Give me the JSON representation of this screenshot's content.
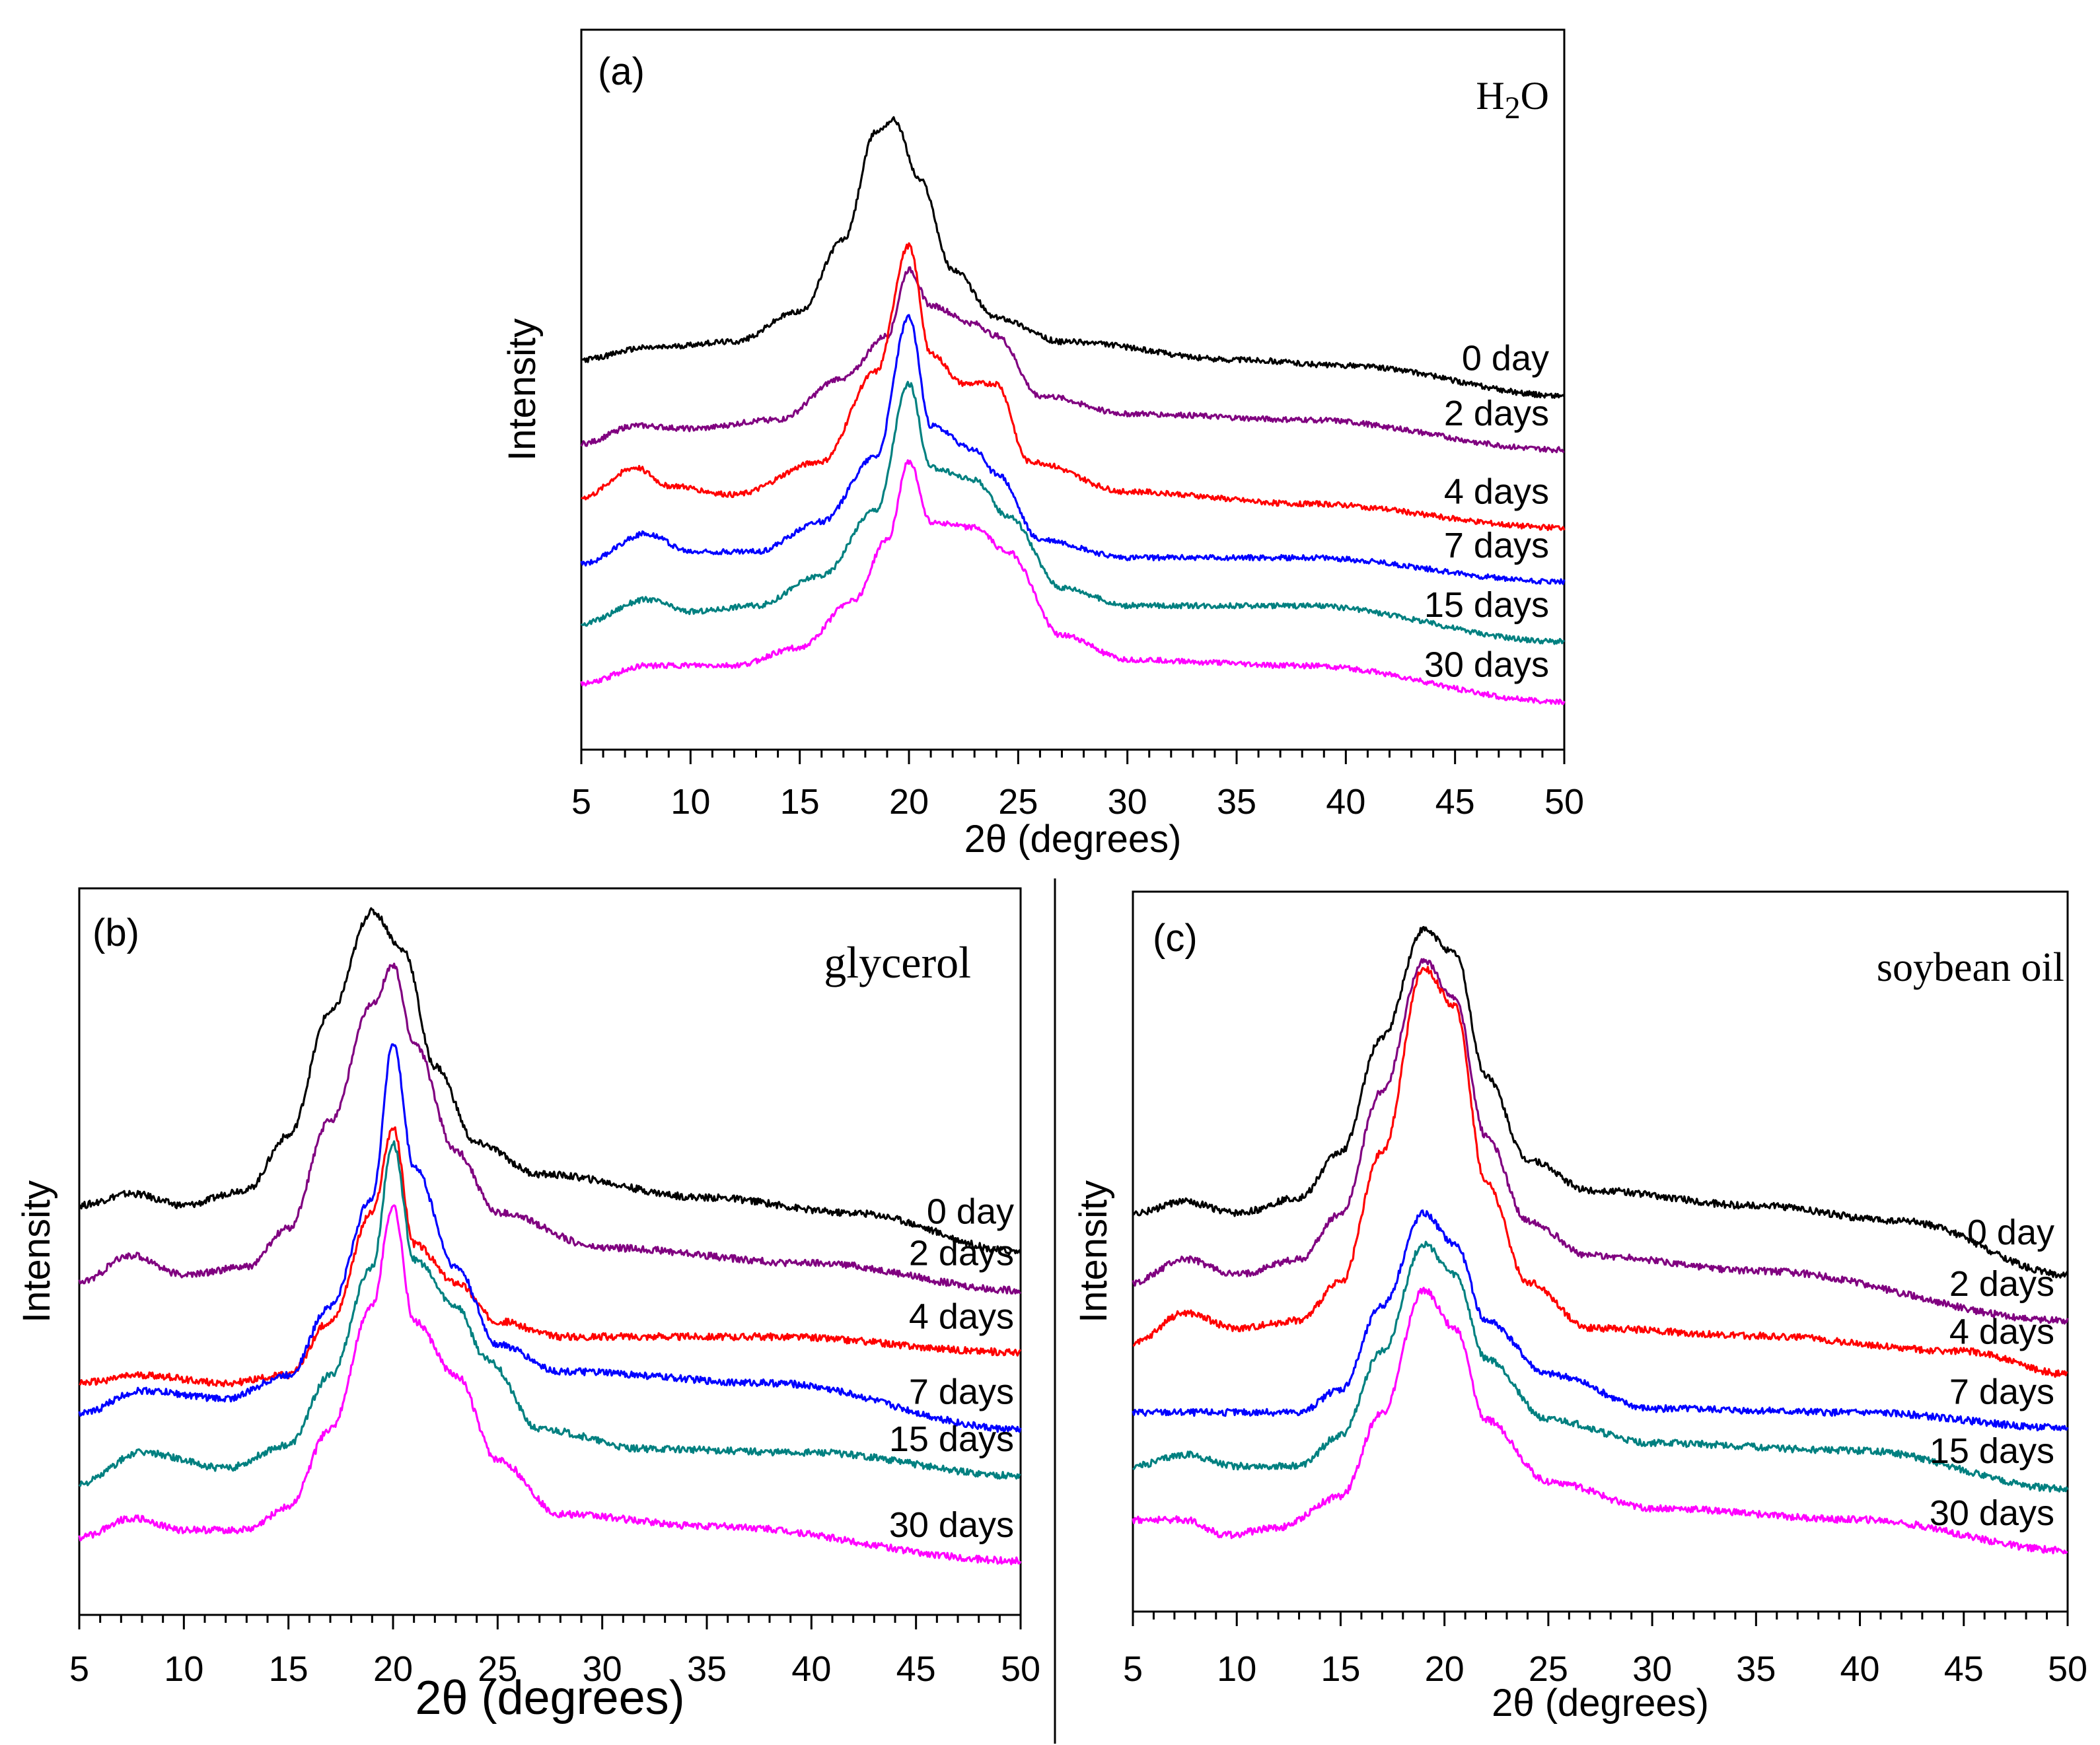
{
  "chart_data": [
    {
      "type": "line",
      "panel_label": "(a)",
      "title": "H2O",
      "title_main": "H",
      "title_sub": "2",
      "title_end": "O",
      "xlabel": "2θ (degrees)",
      "ylabel": "Intensity",
      "xlim": [
        5,
        50
      ],
      "x_ticks": [
        "5",
        "10",
        "15",
        "20",
        "25",
        "30",
        "35",
        "40",
        "45",
        "50"
      ],
      "y_units": "arbitrary (offset traces)",
      "series": [
        {
          "name": "0 day",
          "color": "#000000",
          "baseline": 8.0,
          "points": [
            [
              5,
              8.0
            ],
            [
              8,
              8.2
            ],
            [
              12,
              8.3
            ],
            [
              15,
              8.8
            ],
            [
              17,
              10.0
            ],
            [
              18.5,
              11.8
            ],
            [
              19.3,
              12.0
            ],
            [
              20.5,
              11.0
            ],
            [
              22,
              9.5
            ],
            [
              24,
              8.7
            ],
            [
              27,
              8.3
            ],
            [
              35,
              8.0
            ],
            [
              40,
              7.9
            ],
            [
              50,
              7.4
            ]
          ]
        },
        {
          "name": "2 days",
          "color": "#800080",
          "baseline": 6.5,
          "points": [
            [
              5,
              6.6
            ],
            [
              7.5,
              6.9
            ],
            [
              10,
              6.85
            ],
            [
              14,
              7.0
            ],
            [
              17,
              7.7
            ],
            [
              19,
              8.4
            ],
            [
              20,
              9.5
            ],
            [
              21,
              8.9
            ],
            [
              23,
              8.6
            ],
            [
              24,
              8.4
            ],
            [
              26,
              7.4
            ],
            [
              30,
              7.1
            ],
            [
              38,
              7.0
            ],
            [
              50,
              6.5
            ]
          ]
        },
        {
          "name": "4 days",
          "color": "#ff0000",
          "baseline": 5.5,
          "points": [
            [
              5,
              5.7
            ],
            [
              7.5,
              6.2
            ],
            [
              9,
              5.9
            ],
            [
              12,
              5.75
            ],
            [
              16,
              6.3
            ],
            [
              18.5,
              7.8
            ],
            [
              20,
              9.9
            ],
            [
              21,
              8.1
            ],
            [
              22.5,
              7.6
            ],
            [
              24,
              7.6
            ],
            [
              25.5,
              6.3
            ],
            [
              30,
              5.8
            ],
            [
              38,
              5.6
            ],
            [
              50,
              5.2
            ]
          ]
        },
        {
          "name": "7 days",
          "color": "#0000ff",
          "baseline": 4.5,
          "points": [
            [
              5,
              4.6
            ],
            [
              8,
              5.1
            ],
            [
              10,
              4.8
            ],
            [
              13,
              4.8
            ],
            [
              16,
              5.3
            ],
            [
              18.5,
              6.4
            ],
            [
              20,
              8.7
            ],
            [
              21,
              6.9
            ],
            [
              23,
              6.5
            ],
            [
              24,
              6.1
            ],
            [
              26,
              5.0
            ],
            [
              30,
              4.7
            ],
            [
              38,
              4.7
            ],
            [
              50,
              4.3
            ]
          ]
        },
        {
          "name": "15 days",
          "color": "#008080",
          "baseline": 3.5,
          "points": [
            [
              5,
              3.6
            ],
            [
              8,
              4.0
            ],
            [
              10,
              3.8
            ],
            [
              13,
              3.9
            ],
            [
              16,
              4.4
            ],
            [
              18.5,
              5.5
            ],
            [
              20,
              7.6
            ],
            [
              21,
              6.2
            ],
            [
              23,
              6.0
            ],
            [
              24.5,
              5.4
            ],
            [
              27,
              4.2
            ],
            [
              30,
              3.9
            ],
            [
              38,
              3.9
            ],
            [
              50,
              3.3
            ]
          ]
        },
        {
          "name": "30 days",
          "color": "#ff00ff",
          "baseline": 2.5,
          "points": [
            [
              5,
              2.6
            ],
            [
              8,
              2.9
            ],
            [
              12,
              2.9
            ],
            [
              15,
              3.2
            ],
            [
              17.5,
              4.0
            ],
            [
              19,
              5.0
            ],
            [
              20,
              6.3
            ],
            [
              21,
              5.3
            ],
            [
              23,
              5.2
            ],
            [
              24.5,
              4.8
            ],
            [
              27,
              3.4
            ],
            [
              30,
              3.0
            ],
            [
              38,
              2.9
            ],
            [
              50,
              2.3
            ]
          ]
        }
      ]
    },
    {
      "type": "line",
      "panel_label": "(b)",
      "title": "glycerol",
      "xlabel": "2θ (degrees)",
      "ylabel": "Intensity",
      "xlim": [
        5,
        50
      ],
      "x_ticks": [
        "5",
        "10",
        "15",
        "20",
        "25",
        "30",
        "35",
        "40",
        "45",
        "50"
      ],
      "y_units": "arbitrary (offset traces)",
      "series": [
        {
          "name": "0 day",
          "color": "#000000",
          "baseline": 8.5,
          "points": [
            [
              5,
              8.5
            ],
            [
              7.5,
              8.65
            ],
            [
              10,
              8.5
            ],
            [
              13,
              8.7
            ],
            [
              15,
              9.4
            ],
            [
              17,
              11.0
            ],
            [
              19,
              12.3
            ],
            [
              20.5,
              11.8
            ],
            [
              22,
              10.3
            ],
            [
              24,
              9.3
            ],
            [
              27,
              8.9
            ],
            [
              35,
              8.6
            ],
            [
              42,
              8.4
            ],
            [
              50,
              7.9
            ]
          ]
        },
        {
          "name": "2 days",
          "color": "#800080",
          "baseline": 7.5,
          "points": [
            [
              5,
              7.5
            ],
            [
              7.5,
              7.85
            ],
            [
              10,
              7.6
            ],
            [
              13,
              7.7
            ],
            [
              15,
              8.2
            ],
            [
              17,
              9.6
            ],
            [
              19,
              11.1
            ],
            [
              20,
              11.6
            ],
            [
              21,
              10.6
            ],
            [
              23,
              9.2
            ],
            [
              25,
              8.4
            ],
            [
              30,
              7.95
            ],
            [
              40,
              7.75
            ],
            [
              50,
              7.4
            ]
          ]
        },
        {
          "name": "4 days",
          "color": "#ff0000",
          "baseline": 6.2,
          "points": [
            [
              5,
              6.2
            ],
            [
              8,
              6.3
            ],
            [
              12,
              6.2
            ],
            [
              15,
              6.3
            ],
            [
              17,
              7.0
            ],
            [
              19,
              8.4
            ],
            [
              20,
              9.5
            ],
            [
              21,
              8.0
            ],
            [
              23,
              7.5
            ],
            [
              25,
              7.0
            ],
            [
              28,
              6.8
            ],
            [
              38,
              6.8
            ],
            [
              50,
              6.6
            ]
          ]
        },
        {
          "name": "7 days",
          "color": "#0000ff",
          "baseline": 5.8,
          "points": [
            [
              5,
              5.8
            ],
            [
              8,
              6.1
            ],
            [
              12,
              6.0
            ],
            [
              15,
              6.3
            ],
            [
              17,
              7.2
            ],
            [
              19,
              8.6
            ],
            [
              20,
              10.6
            ],
            [
              21,
              9.0
            ],
            [
              23,
              7.7
            ],
            [
              25,
              6.7
            ],
            [
              28,
              6.35
            ],
            [
              38,
              6.2
            ],
            [
              50,
              5.6
            ]
          ]
        },
        {
          "name": "15 days",
          "color": "#008080",
          "baseline": 4.9,
          "points": [
            [
              5,
              4.9
            ],
            [
              8,
              5.3
            ],
            [
              12,
              5.1
            ],
            [
              15,
              5.4
            ],
            [
              17,
              6.3
            ],
            [
              19,
              7.7
            ],
            [
              20,
              9.3
            ],
            [
              21,
              7.8
            ],
            [
              23,
              7.2
            ],
            [
              24.5,
              6.5
            ],
            [
              27,
              5.6
            ],
            [
              32,
              5.35
            ],
            [
              40,
              5.3
            ],
            [
              50,
              5.0
            ]
          ]
        },
        {
          "name": "30 days",
          "color": "#ff00ff",
          "baseline": 4.2,
          "points": [
            [
              5,
              4.2
            ],
            [
              7.5,
              4.45
            ],
            [
              10,
              4.3
            ],
            [
              13,
              4.3
            ],
            [
              15,
              4.6
            ],
            [
              17,
              5.6
            ],
            [
              19,
              7.2
            ],
            [
              20,
              8.5
            ],
            [
              21,
              7.0
            ],
            [
              23,
              6.3
            ],
            [
              25,
              5.2
            ],
            [
              28,
              4.5
            ],
            [
              35,
              4.35
            ],
            [
              50,
              3.9
            ]
          ]
        }
      ]
    },
    {
      "type": "line",
      "panel_label": "(c)",
      "title": "soybean oil",
      "xlabel": "2θ (degrees)",
      "ylabel": "Intensity",
      "xlim": [
        5,
        50
      ],
      "x_ticks": [
        "5",
        "10",
        "15",
        "20",
        "25",
        "30",
        "35",
        "40",
        "45",
        "50"
      ],
      "y_units": "arbitrary (offset traces)",
      "series": [
        {
          "name": "0 day",
          "color": "#000000",
          "baseline": 8.6,
          "points": [
            [
              5,
              8.6
            ],
            [
              7.5,
              8.75
            ],
            [
              10,
              8.6
            ],
            [
              13,
              8.8
            ],
            [
              15,
              9.4
            ],
            [
              17,
              10.9
            ],
            [
              19,
              12.3
            ],
            [
              20.5,
              12.0
            ],
            [
              22,
              10.4
            ],
            [
              24,
              9.3
            ],
            [
              27,
              8.9
            ],
            [
              35,
              8.7
            ],
            [
              42,
              8.5
            ],
            [
              50,
              7.8
            ]
          ]
        },
        {
          "name": "2 days",
          "color": "#800080",
          "baseline": 7.7,
          "points": [
            [
              5,
              7.7
            ],
            [
              7.5,
              8.0
            ],
            [
              10,
              7.8
            ],
            [
              13,
              8.0
            ],
            [
              15,
              8.6
            ],
            [
              17,
              10.2
            ],
            [
              19,
              11.9
            ],
            [
              20.5,
              11.4
            ],
            [
              22,
              9.6
            ],
            [
              24,
              8.5
            ],
            [
              27,
              8.05
            ],
            [
              35,
              7.85
            ],
            [
              50,
              7.2
            ]
          ]
        },
        {
          "name": "4 days",
          "color": "#ff0000",
          "baseline": 6.9,
          "points": [
            [
              5,
              6.9
            ],
            [
              7.5,
              7.3
            ],
            [
              10,
              7.1
            ],
            [
              13,
              7.2
            ],
            [
              15,
              7.7
            ],
            [
              17,
              9.4
            ],
            [
              19,
              11.8
            ],
            [
              20.5,
              11.3
            ],
            [
              22,
              9.0
            ],
            [
              24,
              7.7
            ],
            [
              27,
              7.1
            ],
            [
              35,
              7.0
            ],
            [
              45,
              6.8
            ],
            [
              50,
              6.5
            ]
          ]
        },
        {
          "name": "7 days",
          "color": "#0000ff",
          "baseline": 6.0,
          "points": [
            [
              5,
              6.0
            ],
            [
              10,
              6.0
            ],
            [
              13,
              6.0
            ],
            [
              15,
              6.3
            ],
            [
              17,
              7.4
            ],
            [
              19,
              8.6
            ],
            [
              20.5,
              8.2
            ],
            [
              22,
              7.2
            ],
            [
              25,
              6.5
            ],
            [
              30,
              6.05
            ],
            [
              40,
              6.0
            ],
            [
              50,
              5.8
            ]
          ]
        },
        {
          "name": "15 days",
          "color": "#008080",
          "baseline": 5.3,
          "points": [
            [
              5,
              5.3
            ],
            [
              7.5,
              5.45
            ],
            [
              10,
              5.3
            ],
            [
              13,
              5.3
            ],
            [
              15,
              5.7
            ],
            [
              17,
              6.8
            ],
            [
              19,
              8.2
            ],
            [
              20.5,
              7.8
            ],
            [
              22,
              6.7
            ],
            [
              25,
              5.9
            ],
            [
              30,
              5.6
            ],
            [
              40,
              5.5
            ],
            [
              50,
              5.0
            ]
          ]
        },
        {
          "name": "30 days",
          "color": "#ff00ff",
          "baseline": 4.6,
          "points": [
            [
              5,
              4.6
            ],
            [
              7.5,
              4.6
            ],
            [
              9.5,
              4.4
            ],
            [
              12,
              4.5
            ],
            [
              15,
              4.9
            ],
            [
              17,
              6.0
            ],
            [
              19,
              7.6
            ],
            [
              20.5,
              7.1
            ],
            [
              22,
              5.9
            ],
            [
              25,
              5.1
            ],
            [
              30,
              4.75
            ],
            [
              40,
              4.6
            ],
            [
              50,
              4.2
            ]
          ]
        }
      ]
    }
  ]
}
